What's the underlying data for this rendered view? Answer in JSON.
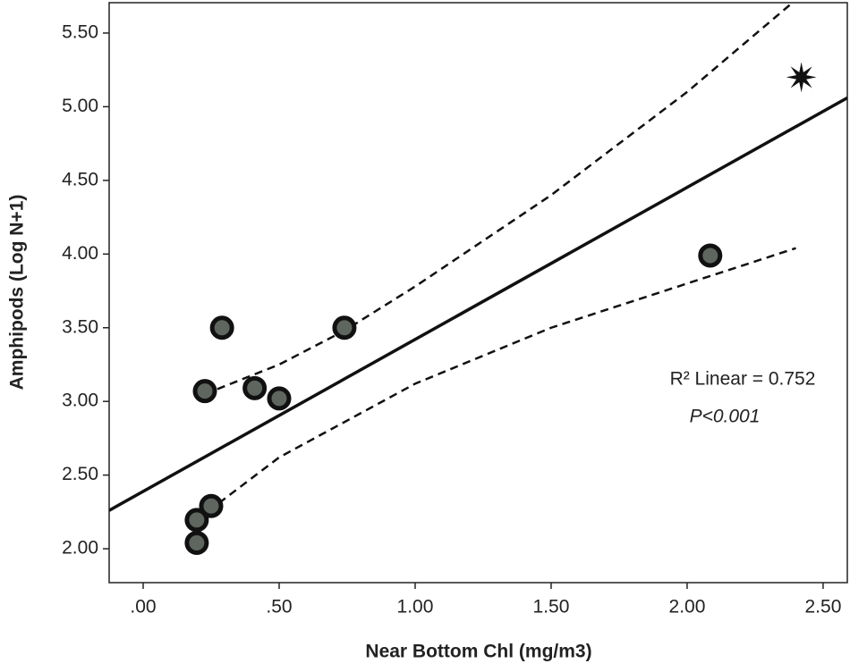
{
  "chart_data": {
    "type": "scatter",
    "x_label": "Near Bottom Chl (mg/m3)",
    "y_label": "Amphipods (Log N+1)",
    "xlim": [
      -0.125,
      2.589
    ],
    "ylim": [
      1.77,
      5.706
    ],
    "xticks": [
      {
        "value": 0,
        "label": ".00"
      },
      {
        "value": 0.5,
        "label": ".50"
      },
      {
        "value": 1,
        "label": "1.00"
      },
      {
        "value": 1.5,
        "label": "1.50"
      },
      {
        "value": 2,
        "label": "2.00"
      },
      {
        "value": 2.5,
        "label": "2.50"
      }
    ],
    "yticks": [
      {
        "value": 2,
        "label": "2.00"
      },
      {
        "value": 2.5,
        "label": "2.50"
      },
      {
        "value": 3,
        "label": "3.00"
      },
      {
        "value": 3.5,
        "label": "3.50"
      },
      {
        "value": 4,
        "label": "4.00"
      },
      {
        "value": 4.5,
        "label": "4.50"
      },
      {
        "value": 5,
        "label": "5.00"
      },
      {
        "value": 5.5,
        "label": "5.50"
      }
    ],
    "series": [
      {
        "marker": "circle",
        "color": "#5f6660",
        "x": [
          0.197,
          0.197,
          0.25,
          0.227,
          0.29,
          0.41,
          0.5,
          0.74,
          2.085
        ],
        "values": [
          2.04,
          2.195,
          2.29,
          3.07,
          3.5,
          3.09,
          3.02,
          3.5,
          3.99
        ]
      },
      {
        "marker": "star",
        "color": "#111111",
        "x": [
          2.42
        ],
        "values": [
          5.2
        ]
      }
    ],
    "fit_line": {
      "x": [
        -0.125,
        2.589
      ],
      "values": [
        2.26,
        5.06
      ]
    },
    "ci_upper": {
      "x": [
        0.227,
        0.5,
        0.74,
        1.0,
        1.5,
        2.0,
        2.39
      ],
      "values": [
        3.05,
        3.25,
        3.48,
        3.78,
        4.4,
        5.1,
        5.71
      ]
    },
    "ci_lower": {
      "x": [
        0.2,
        0.5,
        1.0,
        1.5,
        2.0,
        2.4
      ],
      "values": [
        2.2,
        2.62,
        3.12,
        3.5,
        3.8,
        4.04
      ]
    },
    "annotations": [
      "R² Linear = 0.752",
      "P<0.001"
    ]
  }
}
